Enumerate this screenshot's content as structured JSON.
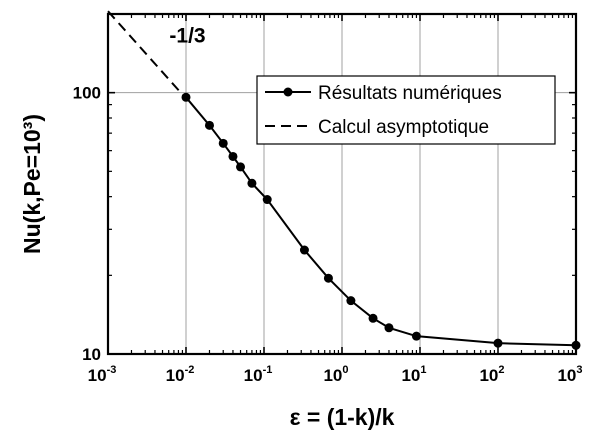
{
  "chart_data": {
    "type": "line",
    "xlabel": "ε = (1-k)/k",
    "ylabel": "Nu(k,Pe=10³)",
    "xscale": "log",
    "yscale": "log",
    "xlim": [
      0.001,
      1000
    ],
    "ylim": [
      10,
      200
    ],
    "grid": true,
    "legend_position": "top-right",
    "x_ticks": [
      {
        "value": 0.001,
        "base": "10",
        "exp": "-3"
      },
      {
        "value": 0.01,
        "base": "10",
        "exp": "-2"
      },
      {
        "value": 0.1,
        "base": "10",
        "exp": "-1"
      },
      {
        "value": 1,
        "base": "10",
        "exp": "0"
      },
      {
        "value": 10,
        "base": "10",
        "exp": "1"
      },
      {
        "value": 100,
        "base": "10",
        "exp": "2"
      },
      {
        "value": 1000,
        "base": "10",
        "exp": "3"
      }
    ],
    "y_ticks": [
      {
        "value": 10,
        "label": "10"
      },
      {
        "value": 100,
        "label": "100"
      }
    ],
    "series": [
      {
        "name": "Résultats numériques",
        "style": "solid-with-circles",
        "color": "#000000",
        "x": [
          0.01,
          0.02,
          0.03,
          0.04,
          0.05,
          0.07,
          0.11,
          0.33,
          0.67,
          1.3,
          2.5,
          4.0,
          9.0,
          100,
          1000
        ],
        "y": [
          96,
          75,
          64,
          57,
          52,
          45,
          39,
          25,
          19.5,
          16,
          13.7,
          12.6,
          11.7,
          11.0,
          10.8
        ]
      },
      {
        "name": "Calcul asymptotique",
        "style": "dashed",
        "color": "#000000",
        "x": [
          0.001,
          0.01
        ],
        "y": [
          205,
          95
        ]
      }
    ],
    "annotations": [
      {
        "text": "-1/3",
        "x": 0.0065,
        "y": 145
      }
    ]
  }
}
